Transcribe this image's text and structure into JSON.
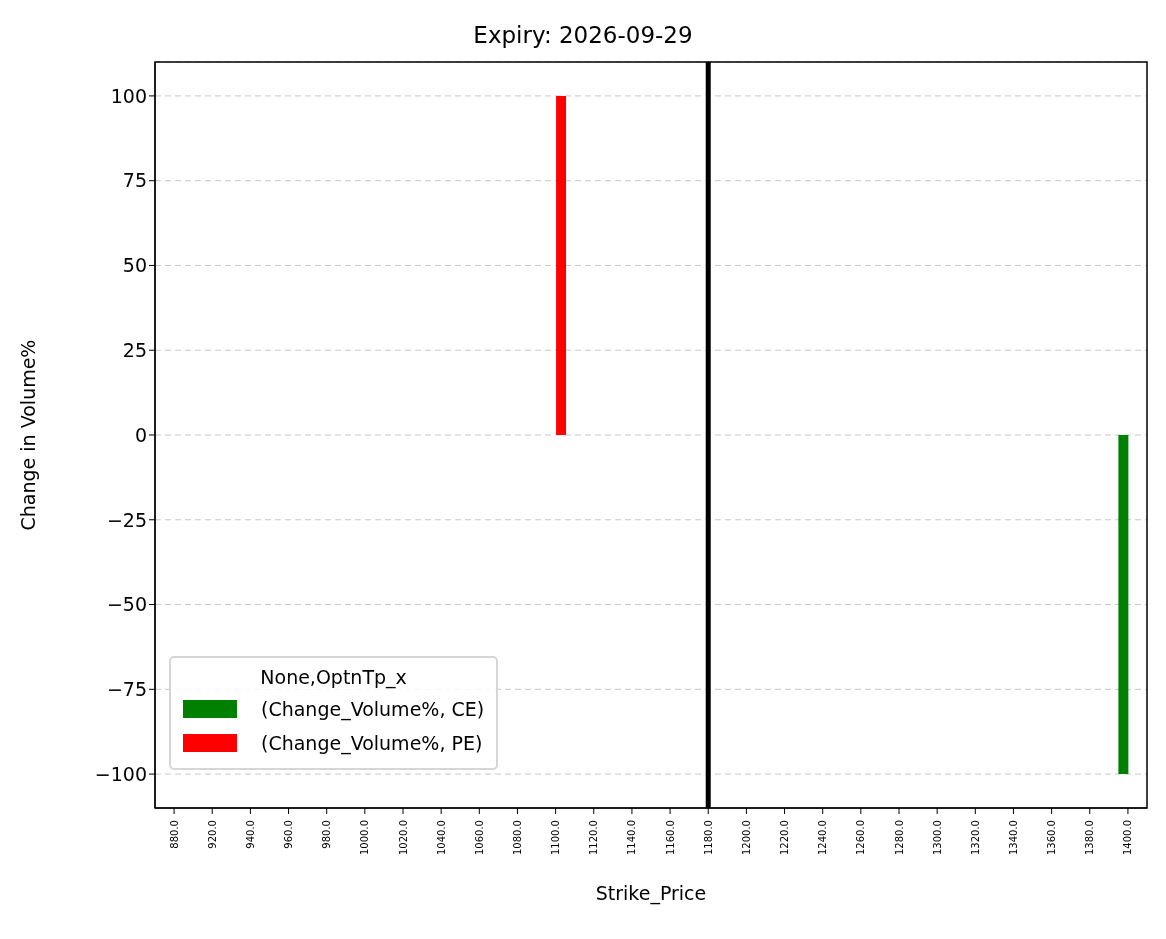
{
  "chart_data": {
    "type": "bar",
    "title": "Expiry: 2026-09-29",
    "xlabel": "Strike_Price",
    "ylabel": "Change in Volume%",
    "legend_title": "None,OptnTp_x",
    "categories": [
      "880.0",
      "920.0",
      "940.0",
      "960.0",
      "980.0",
      "1000.0",
      "1020.0",
      "1040.0",
      "1060.0",
      "1080.0",
      "1100.0",
      "1120.0",
      "1140.0",
      "1160.0",
      "1180.0",
      "1200.0",
      "1220.0",
      "1240.0",
      "1260.0",
      "1280.0",
      "1300.0",
      "1320.0",
      "1340.0",
      "1360.0",
      "1380.0",
      "1400.0"
    ],
    "series": [
      {
        "name": "(Change_Volume%, CE)",
        "color": "#008000",
        "values": [
          null,
          null,
          null,
          null,
          null,
          null,
          null,
          null,
          null,
          null,
          null,
          null,
          null,
          null,
          null,
          null,
          null,
          null,
          null,
          null,
          null,
          null,
          null,
          null,
          null,
          -100
        ]
      },
      {
        "name": "(Change_Volume%, PE)",
        "color": "#ff0000",
        "values": [
          null,
          null,
          null,
          null,
          null,
          null,
          null,
          null,
          null,
          null,
          100,
          null,
          null,
          null,
          null,
          null,
          null,
          null,
          null,
          null,
          null,
          null,
          null,
          null,
          null,
          null
        ]
      }
    ],
    "ylim": [
      -110,
      110
    ],
    "yticks": [
      {
        "value": -100,
        "label": "−100"
      },
      {
        "value": -75,
        "label": "−75"
      },
      {
        "value": -50,
        "label": "−50"
      },
      {
        "value": -25,
        "label": "−25"
      },
      0,
      25,
      50,
      75,
      100
    ],
    "ref_lines": [
      {
        "axis": "x",
        "value": "1180.0",
        "color": "#000000"
      }
    ],
    "grid": "y",
    "legend": "bottom left"
  }
}
